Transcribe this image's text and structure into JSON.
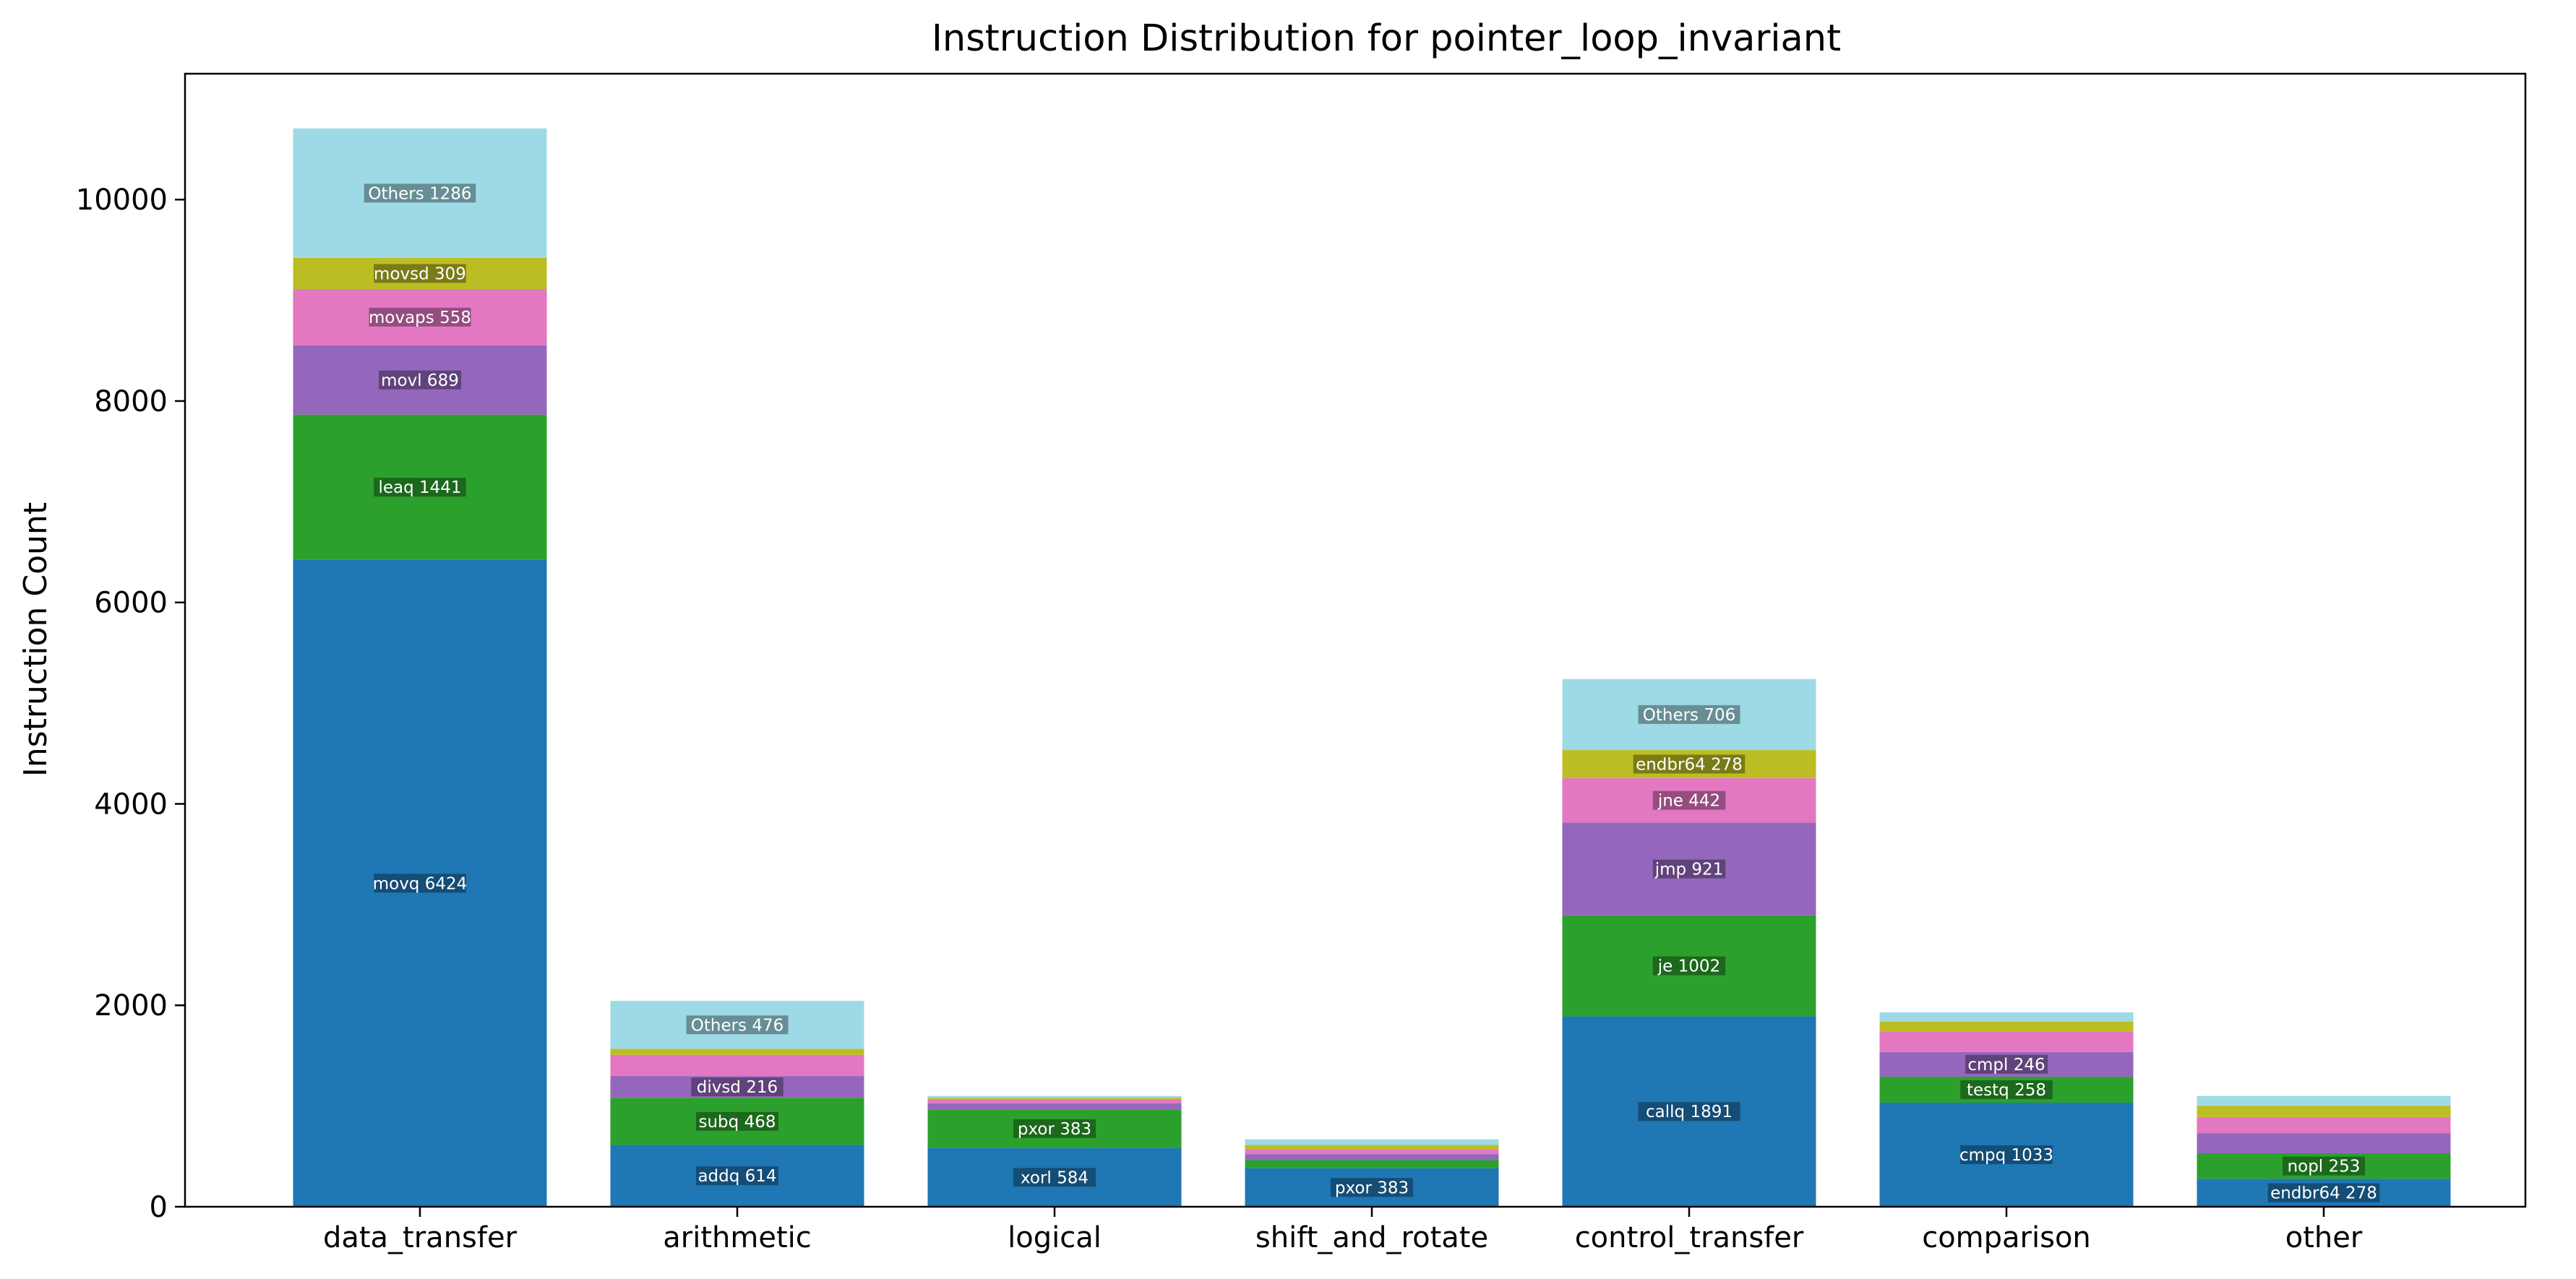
{
  "chart_data": {
    "type": "bar",
    "stacked": true,
    "title": "Instruction Distribution for pointer_loop_invariant",
    "xlabel": "",
    "ylabel": "Instruction Count",
    "ylim": [
      0,
      11250
    ],
    "yticks": [
      0,
      2000,
      4000,
      6000,
      8000,
      10000
    ],
    "grid": false,
    "legend": "none",
    "layer_colors": [
      "#1f77b4",
      "#2ca02c",
      "#9467bd",
      "#e377c2",
      "#bcbd22",
      "#9edae5"
    ],
    "categories": [
      "data_transfer",
      "arithmetic",
      "logical",
      "shift_and_rotate",
      "control_transfer",
      "comparison",
      "other"
    ],
    "stacks": [
      {
        "category": "data_transfer",
        "segments": [
          {
            "value": 6424,
            "label": "movq 6424"
          },
          {
            "value": 1441,
            "label": "leaq 1441"
          },
          {
            "value": 689,
            "label": "movl 689"
          },
          {
            "value": 558,
            "label": "movaps 558"
          },
          {
            "value": 309,
            "label": "movsd 309"
          },
          {
            "value": 1286,
            "label": "Others 1286"
          }
        ]
      },
      {
        "category": "arithmetic",
        "segments": [
          {
            "value": 614,
            "label": "addq 614"
          },
          {
            "value": 468,
            "label": "subq 468"
          },
          {
            "value": 216,
            "label": "divsd 216"
          },
          {
            "value": 210,
            "label": ""
          },
          {
            "value": 60,
            "label": ""
          },
          {
            "value": 476,
            "label": "Others 476"
          }
        ]
      },
      {
        "category": "logical",
        "segments": [
          {
            "value": 584,
            "label": "xorl 584"
          },
          {
            "value": 383,
            "label": "pxor 383"
          },
          {
            "value": 60,
            "label": ""
          },
          {
            "value": 40,
            "label": ""
          },
          {
            "value": 15,
            "label": ""
          },
          {
            "value": 18,
            "label": ""
          }
        ]
      },
      {
        "category": "shift_and_rotate",
        "segments": [
          {
            "value": 383,
            "label": "pxor 383"
          },
          {
            "value": 80,
            "label": ""
          },
          {
            "value": 60,
            "label": ""
          },
          {
            "value": 50,
            "label": ""
          },
          {
            "value": 40,
            "label": ""
          },
          {
            "value": 57,
            "label": ""
          }
        ]
      },
      {
        "category": "control_transfer",
        "segments": [
          {
            "value": 1891,
            "label": "callq 1891"
          },
          {
            "value": 1002,
            "label": "je 1002"
          },
          {
            "value": 921,
            "label": "jmp 921"
          },
          {
            "value": 442,
            "label": "jne 442"
          },
          {
            "value": 278,
            "label": "endbr64 278"
          },
          {
            "value": 706,
            "label": "Others 706"
          }
        ]
      },
      {
        "category": "comparison",
        "segments": [
          {
            "value": 1033,
            "label": "cmpq 1033"
          },
          {
            "value": 258,
            "label": "testq 258"
          },
          {
            "value": 246,
            "label": "cmpl 246"
          },
          {
            "value": 200,
            "label": ""
          },
          {
            "value": 100,
            "label": ""
          },
          {
            "value": 93,
            "label": ""
          }
        ]
      },
      {
        "category": "other",
        "segments": [
          {
            "value": 278,
            "label": "endbr64 278"
          },
          {
            "value": 253,
            "label": "nopl 253"
          },
          {
            "value": 200,
            "label": ""
          },
          {
            "value": 160,
            "label": ""
          },
          {
            "value": 110,
            "label": ""
          },
          {
            "value": 99,
            "label": ""
          }
        ]
      }
    ]
  }
}
